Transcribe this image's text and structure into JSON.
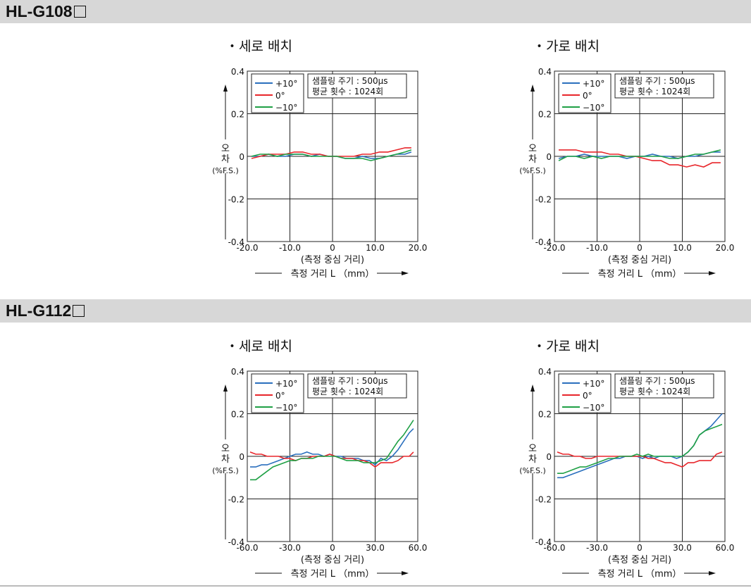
{
  "sections": [
    {
      "title": "HL-G108",
      "title_box": true
    },
    {
      "title": "HL-G112",
      "title_box": true
    }
  ],
  "legend": [
    {
      "label": "+10°",
      "color": "#2a6fbd"
    },
    {
      "label": "0°",
      "color": "#e8262b"
    },
    {
      "label": "−10°",
      "color": "#1fa045"
    }
  ],
  "info_box": [
    "샘플링 주기 : 500μs",
    "평균 횟수 : 1024회"
  ],
  "ylabel": [
    "오",
    "차",
    "(%F.S.)"
  ],
  "xlabel_center": "(측정 중심 거리)",
  "xlabel_distance": "측정 거리 L （mm）",
  "chart_data": [
    {
      "type": "line",
      "section": 0,
      "title": "・세로 배치",
      "ylim": [
        -0.4,
        0.4
      ],
      "yticks": [
        0.4,
        0.2,
        0,
        -0.2,
        -0.4
      ],
      "yticklabels": [
        "0.4",
        "0.2",
        "0",
        "-0.2",
        "-0.4"
      ],
      "xlim": [
        -20,
        20
      ],
      "xticks": [
        -20,
        -10,
        0,
        10,
        20
      ],
      "xticklabels": [
        "-20.0",
        "-10.0",
        "0",
        "10.0",
        "20.0"
      ],
      "grid": true,
      "series": [
        {
          "name": "+10°",
          "x": [
            -19,
            -17,
            -15,
            -13,
            -11,
            -9,
            -7,
            -5,
            -3,
            -1,
            1,
            3,
            5,
            7,
            9,
            11,
            13,
            15,
            17,
            18.5
          ],
          "y": [
            0.0,
            0.0,
            0.01,
            0.0,
            0.0,
            0.01,
            0.01,
            0.0,
            0.01,
            0.0,
            0.0,
            -0.01,
            -0.01,
            0.0,
            -0.01,
            -0.01,
            0.0,
            0.01,
            0.01,
            0.02
          ]
        },
        {
          "name": "0°",
          "x": [
            -19,
            -17,
            -15,
            -13,
            -11,
            -9,
            -7,
            -5,
            -3,
            -1,
            1,
            3,
            5,
            7,
            9,
            11,
            13,
            15,
            17,
            18.5
          ],
          "y": [
            -0.01,
            0.0,
            0.01,
            0.01,
            0.01,
            0.02,
            0.02,
            0.01,
            0.01,
            0.0,
            0.0,
            0.0,
            0.0,
            0.01,
            0.01,
            0.02,
            0.02,
            0.03,
            0.04,
            0.04
          ]
        },
        {
          "name": "−10°",
          "x": [
            -19,
            -17,
            -15,
            -13,
            -11,
            -9,
            -7,
            -5,
            -3,
            -1,
            1,
            3,
            5,
            7,
            9,
            11,
            13,
            15,
            17,
            18.5
          ],
          "y": [
            0.0,
            0.01,
            0.01,
            0.0,
            0.01,
            0.01,
            0.01,
            0.0,
            0.0,
            0.0,
            0.0,
            -0.01,
            -0.01,
            -0.01,
            -0.02,
            -0.01,
            0.0,
            0.01,
            0.02,
            0.03
          ]
        }
      ]
    },
    {
      "type": "line",
      "section": 0,
      "title": "・가로 배치",
      "ylim": [
        -0.4,
        0.4
      ],
      "yticks": [
        0.4,
        0.2,
        0,
        -0.2,
        -0.4
      ],
      "yticklabels": [
        "0.4",
        "0.2",
        "0",
        "-0.2",
        "-0.4"
      ],
      "xlim": [
        -20,
        20
      ],
      "xticks": [
        -20,
        -10,
        0,
        10,
        20
      ],
      "xticklabels": [
        "-20.0",
        "-10.0",
        "0",
        "10.0",
        "20.0"
      ],
      "grid": true,
      "series": [
        {
          "name": "+10°",
          "x": [
            -19,
            -17,
            -15,
            -13,
            -11,
            -9,
            -7,
            -5,
            -3,
            -1,
            1,
            3,
            5,
            7,
            9,
            11,
            13,
            15,
            17,
            19
          ],
          "y": [
            -0.01,
            0.0,
            0.0,
            0.01,
            0.0,
            0.0,
            0.0,
            0.0,
            -0.01,
            0.0,
            0.0,
            0.01,
            0.0,
            0.0,
            -0.01,
            0.0,
            0.0,
            0.01,
            0.02,
            0.02
          ]
        },
        {
          "name": "0°",
          "x": [
            -19,
            -17,
            -15,
            -13,
            -11,
            -9,
            -7,
            -5,
            -3,
            -1,
            1,
            3,
            5,
            7,
            9,
            11,
            13,
            15,
            17,
            19
          ],
          "y": [
            0.03,
            0.03,
            0.03,
            0.02,
            0.02,
            0.02,
            0.01,
            0.01,
            0.0,
            0.0,
            -0.01,
            -0.02,
            -0.02,
            -0.04,
            -0.04,
            -0.05,
            -0.04,
            -0.05,
            -0.03,
            -0.03
          ]
        },
        {
          "name": "−10°",
          "x": [
            -19,
            -17,
            -15,
            -13,
            -11,
            -9,
            -7,
            -5,
            -3,
            -1,
            1,
            3,
            5,
            7,
            9,
            11,
            13,
            15,
            17,
            19
          ],
          "y": [
            -0.02,
            0.0,
            0.0,
            -0.01,
            0.0,
            -0.01,
            0.0,
            0.0,
            0.0,
            0.0,
            0.0,
            0.0,
            0.0,
            -0.01,
            -0.01,
            0.0,
            0.01,
            0.01,
            0.02,
            0.03
          ]
        }
      ]
    },
    {
      "type": "line",
      "section": 1,
      "title": "・세로 배치",
      "ylim": [
        -0.4,
        0.4
      ],
      "yticks": [
        0.4,
        0.2,
        0,
        -0.2,
        -0.4
      ],
      "yticklabels": [
        "0.4",
        "0.2",
        "0",
        "-0.2",
        "-0.4"
      ],
      "xlim": [
        -60,
        60
      ],
      "xticks": [
        -60,
        -30,
        0,
        30,
        60
      ],
      "xticklabels": [
        "-60.0",
        "-30.0",
        "0",
        "30.0",
        "60.0"
      ],
      "grid": true,
      "series": [
        {
          "name": "+10°",
          "x": [
            -58,
            -54,
            -50,
            -46,
            -42,
            -38,
            -34,
            -30,
            -26,
            -22,
            -18,
            -14,
            -10,
            -6,
            -2,
            2,
            6,
            10,
            14,
            18,
            22,
            26,
            30,
            34,
            38,
            42,
            46,
            50,
            54,
            57
          ],
          "y": [
            -0.05,
            -0.05,
            -0.04,
            -0.04,
            -0.03,
            -0.02,
            -0.01,
            0.0,
            0.01,
            0.01,
            0.02,
            0.01,
            0.01,
            0.0,
            0.01,
            0.0,
            0.0,
            -0.01,
            -0.01,
            -0.01,
            -0.02,
            -0.02,
            -0.04,
            -0.01,
            -0.02,
            0.0,
            0.03,
            0.07,
            0.11,
            0.13
          ]
        },
        {
          "name": "0°",
          "x": [
            -58,
            -54,
            -50,
            -46,
            -42,
            -38,
            -34,
            -30,
            -26,
            -22,
            -18,
            -14,
            -10,
            -6,
            -2,
            2,
            6,
            10,
            14,
            18,
            22,
            26,
            30,
            34,
            38,
            42,
            46,
            50,
            54,
            57
          ],
          "y": [
            0.02,
            0.01,
            0.01,
            0.0,
            0.0,
            0.0,
            -0.01,
            -0.01,
            -0.02,
            -0.01,
            -0.01,
            0.0,
            0.0,
            0.0,
            0.01,
            0.0,
            -0.01,
            -0.01,
            -0.01,
            -0.02,
            -0.02,
            -0.03,
            -0.05,
            -0.03,
            -0.03,
            -0.03,
            -0.02,
            0.0,
            0.0,
            0.02
          ]
        },
        {
          "name": "−10°",
          "x": [
            -58,
            -54,
            -50,
            -46,
            -42,
            -38,
            -34,
            -30,
            -26,
            -22,
            -18,
            -14,
            -10,
            -6,
            -2,
            2,
            6,
            10,
            14,
            18,
            22,
            26,
            30,
            34,
            38,
            42,
            46,
            50,
            54,
            57
          ],
          "y": [
            -0.11,
            -0.11,
            -0.09,
            -0.07,
            -0.05,
            -0.04,
            -0.03,
            -0.02,
            -0.02,
            -0.01,
            -0.01,
            -0.01,
            0.0,
            0.0,
            0.0,
            0.0,
            -0.01,
            -0.02,
            -0.02,
            -0.02,
            -0.03,
            -0.03,
            -0.03,
            -0.02,
            -0.01,
            0.03,
            0.07,
            0.1,
            0.14,
            0.17
          ]
        }
      ]
    },
    {
      "type": "line",
      "section": 1,
      "title": "・가로 배치",
      "ylim": [
        -0.4,
        0.4
      ],
      "yticks": [
        0.4,
        0.2,
        0,
        -0.2,
        -0.4
      ],
      "yticklabels": [
        "0.4",
        "0.2",
        "0",
        "-0.2",
        "-0.4"
      ],
      "xlim": [
        -60,
        60
      ],
      "xticks": [
        -60,
        -30,
        0,
        30,
        60
      ],
      "xticklabels": [
        "-60.0",
        "-30.0",
        "0",
        "30.0",
        "60.0"
      ],
      "grid": true,
      "series": [
        {
          "name": "+10°",
          "x": [
            -58,
            -54,
            -50,
            -46,
            -42,
            -38,
            -34,
            -30,
            -26,
            -22,
            -18,
            -14,
            -10,
            -6,
            -2,
            2,
            6,
            10,
            14,
            18,
            22,
            26,
            30,
            34,
            38,
            42,
            46,
            50,
            54,
            58
          ],
          "y": [
            -0.1,
            -0.1,
            -0.09,
            -0.08,
            -0.07,
            -0.06,
            -0.05,
            -0.04,
            -0.03,
            -0.02,
            -0.01,
            -0.01,
            0.0,
            0.0,
            0.0,
            -0.01,
            0.0,
            -0.01,
            0.0,
            0.0,
            0.0,
            -0.01,
            0.0,
            0.02,
            0.05,
            0.1,
            0.12,
            0.14,
            0.17,
            0.2
          ]
        },
        {
          "name": "0°",
          "x": [
            -58,
            -54,
            -50,
            -46,
            -42,
            -38,
            -34,
            -30,
            -26,
            -22,
            -18,
            -14,
            -10,
            -6,
            -2,
            2,
            6,
            10,
            14,
            18,
            22,
            26,
            30,
            34,
            38,
            42,
            46,
            50,
            54,
            58
          ],
          "y": [
            0.02,
            0.01,
            0.01,
            0.0,
            0.0,
            -0.01,
            -0.01,
            0.0,
            0.0,
            0.0,
            0.0,
            0.0,
            0.0,
            0.0,
            0.0,
            0.0,
            -0.01,
            -0.01,
            -0.02,
            -0.03,
            -0.03,
            -0.04,
            -0.05,
            -0.03,
            -0.03,
            -0.02,
            -0.02,
            -0.02,
            0.01,
            0.02
          ]
        },
        {
          "name": "−10°",
          "x": [
            -58,
            -54,
            -50,
            -46,
            -42,
            -38,
            -34,
            -30,
            -26,
            -22,
            -18,
            -14,
            -10,
            -6,
            -2,
            2,
            6,
            10,
            14,
            18,
            22,
            26,
            30,
            34,
            38,
            42,
            46,
            50,
            54,
            58
          ],
          "y": [
            -0.08,
            -0.08,
            -0.07,
            -0.06,
            -0.05,
            -0.05,
            -0.04,
            -0.03,
            -0.02,
            -0.01,
            -0.01,
            0.0,
            0.0,
            0.0,
            0.01,
            0.0,
            0.01,
            0.0,
            0.0,
            0.0,
            0.0,
            0.0,
            0.0,
            0.02,
            0.05,
            0.1,
            0.12,
            0.13,
            0.14,
            0.15
          ]
        }
      ]
    }
  ]
}
